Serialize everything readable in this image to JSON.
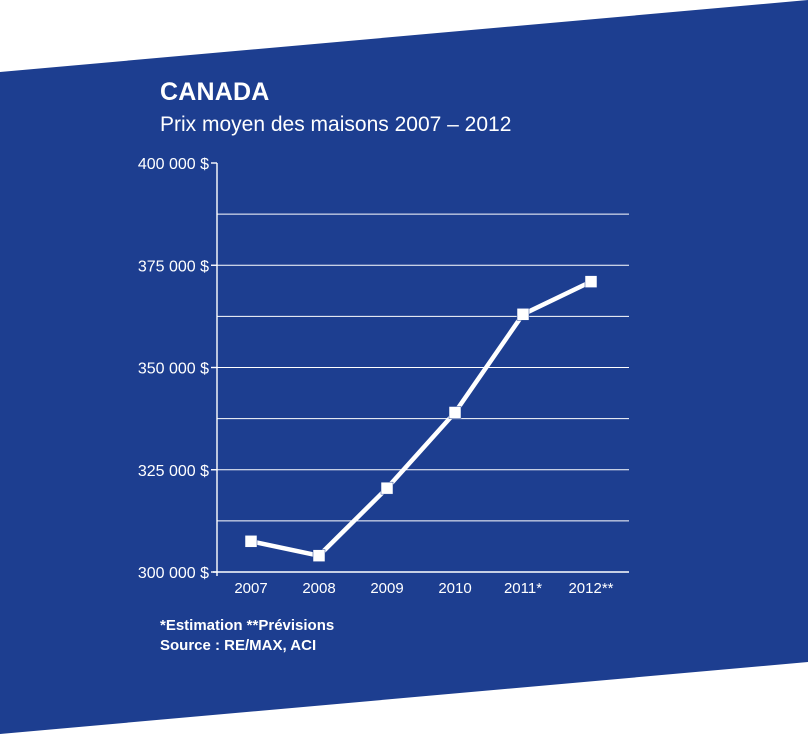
{
  "colors": {
    "panel_background": "#1d3e90",
    "foreground": "#ffffff",
    "page_background": "#ffffff"
  },
  "chart_data": {
    "type": "line",
    "title": "CANADA",
    "subtitle": "Prix moyen des maisons 2007 – 2012",
    "categories": [
      "2007",
      "2008",
      "2009",
      "2010",
      "2011*",
      "2012**"
    ],
    "series": [
      {
        "values": [
          307500,
          304000,
          320500,
          339000,
          363000,
          371000
        ]
      }
    ],
    "ylim": [
      300000,
      400000
    ],
    "y_tick_labels": [
      {
        "value": 300000,
        "label": "300 000 $"
      },
      {
        "value": 325000,
        "label": "325 000 $"
      },
      {
        "value": 350000,
        "label": "350 000 $"
      },
      {
        "value": 375000,
        "label": "375 000 $"
      },
      {
        "value": 400000,
        "label": "400 000 $"
      }
    ],
    "gridlines": [
      312500,
      325000,
      337500,
      350000,
      362500,
      375000,
      387500
    ],
    "grid": true,
    "legend": "none",
    "xlabel": "",
    "ylabel": ""
  },
  "footnotes": {
    "note_line": "*Estimation  **Prévisions",
    "source_line": "Source : RE/MAX, ACI"
  }
}
